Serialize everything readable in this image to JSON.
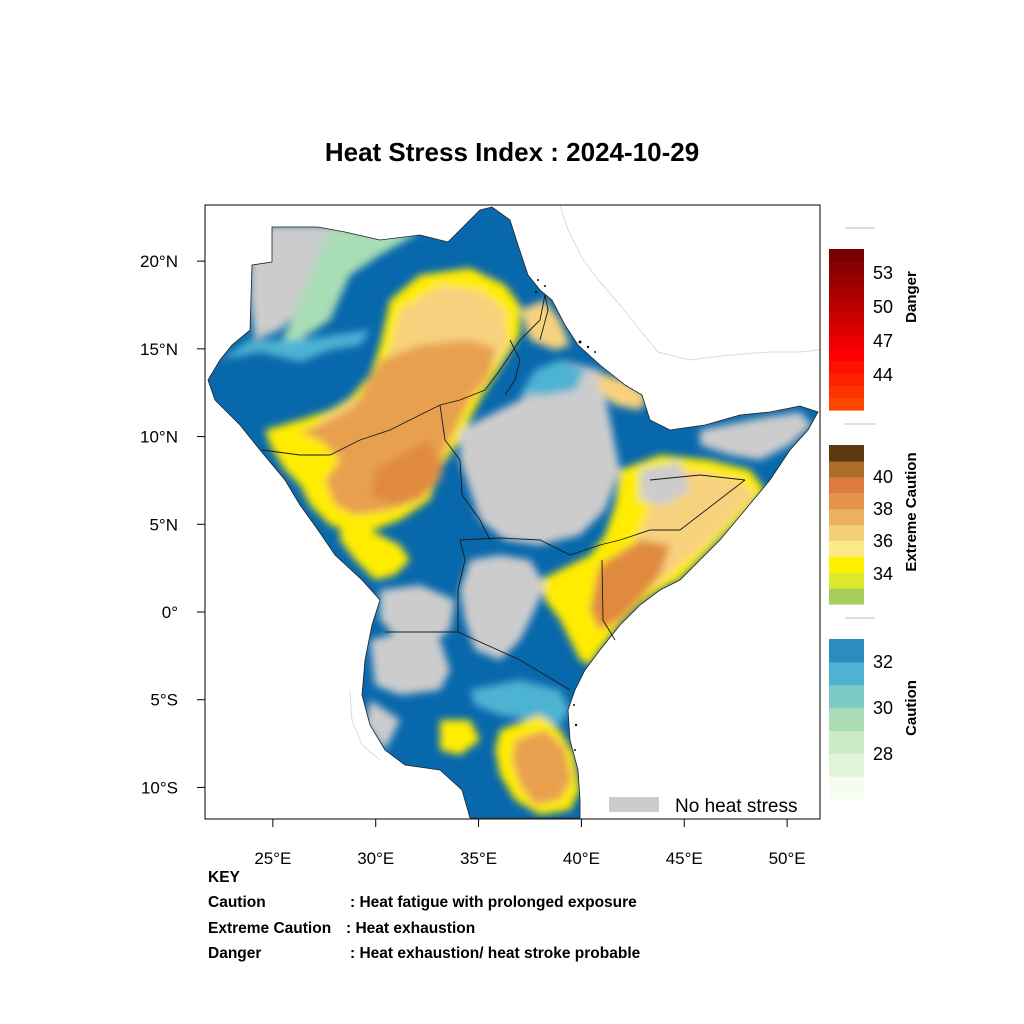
{
  "title": "Heat Stress Index : 2024-10-29",
  "axes": {
    "lat_ticks": [
      {
        "value": 20,
        "label": "20°N"
      },
      {
        "value": 15,
        "label": "15°N"
      },
      {
        "value": 10,
        "label": "10°N"
      },
      {
        "value": 5,
        "label": "5°N"
      },
      {
        "value": 0,
        "label": "0°"
      },
      {
        "value": -5,
        "label": "5°S"
      },
      {
        "value": -10,
        "label": "10°S"
      }
    ],
    "lon_ticks": [
      {
        "value": 25,
        "label": "25°E"
      },
      {
        "value": 30,
        "label": "30°E"
      },
      {
        "value": 35,
        "label": "35°E"
      },
      {
        "value": 40,
        "label": "40°E"
      },
      {
        "value": 45,
        "label": "45°E"
      },
      {
        "value": 50,
        "label": "50°E"
      }
    ],
    "lon_range": [
      21.7,
      51.6
    ],
    "lat_range": [
      -11.8,
      23.2
    ]
  },
  "no_heat_stress": {
    "label": "No heat stress",
    "color": "#cccccc"
  },
  "legends": [
    {
      "label": "Danger",
      "colors": [
        "#ff4500",
        "#ff3300",
        "#ff2200",
        "#ff1100",
        "#ff0000",
        "#ee0000",
        "#dd0000",
        "#cc0000",
        "#bb0000",
        "#aa0000",
        "#990000",
        "#880000",
        "#770000"
      ],
      "tick_labels": [
        "44",
        "47",
        "50",
        "53"
      ]
    },
    {
      "label": "Extreme Caution",
      "colors": [
        "#a8cc5a",
        "#dce82a",
        "#fff200",
        "#fce98a",
        "#f5cf7a",
        "#ebb060",
        "#e5954a",
        "#df7b40",
        "#ab6d2a",
        "#5c3a10"
      ],
      "tick_labels": [
        "34",
        "36",
        "38",
        "40"
      ]
    },
    {
      "label": "Caution",
      "colors": [
        "#f7fcf0",
        "#e0f3db",
        "#ccebc5",
        "#a8ddb5",
        "#7bccc4",
        "#4eb3d3",
        "#2b8cbe"
      ],
      "tick_labels": [
        "28",
        "30",
        "32"
      ]
    }
  ],
  "map_palette": {
    "none": "#cccccc",
    "caution_light": "#a8ddb5",
    "caution_mid": "#4eb3d3",
    "caution_deep": "#0868ac",
    "extreme_yellow": "#ffec00",
    "extreme_pale": "#f7d27e",
    "extreme_orange": "#e8a050",
    "extreme_deep": "#e08a3f"
  },
  "key": {
    "title": "KEY",
    "rows": [
      {
        "term": "Caution",
        "desc": ": Heat fatigue with prolonged exposure"
      },
      {
        "term": "Extreme Caution",
        "desc": ": Heat exhaustion"
      },
      {
        "term": "Danger",
        "desc": ": Heat exhaustion/ heat stroke probable"
      }
    ]
  }
}
